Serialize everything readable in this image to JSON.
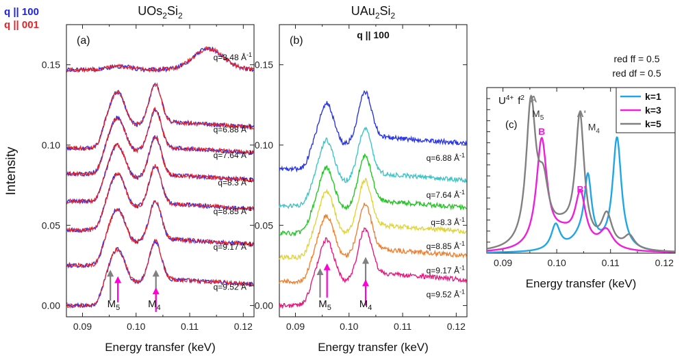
{
  "figure": {
    "y_axis_label": "Intensity",
    "x_axis_label": "Energy transfer (keV)"
  },
  "chart_data": [
    {
      "type": "line",
      "panel": "(a)",
      "title_main": "UOs",
      "title_sub": "2",
      "title_tail": "Si",
      "title_sub2": "2",
      "xlabel": "Energy transfer (keV)",
      "ylabel": "Intensity",
      "xlim": [
        0.087,
        0.122
      ],
      "ylim": [
        -0.007,
        0.175
      ],
      "x_ticks": [
        0.09,
        0.1,
        0.11,
        0.12
      ],
      "x_tick_labels": [
        "0.09",
        "0.10",
        "0.11",
        "0.12"
      ],
      "y_ticks": [
        0.0,
        0.05,
        0.1,
        0.15
      ],
      "y_tick_labels": [
        "0.00",
        "0.05",
        "0.10",
        "0.15"
      ],
      "legend": [
        {
          "label": "q || 100",
          "color": "#1f22e6"
        },
        {
          "label": "q || 001",
          "color": "#e6232a"
        }
      ],
      "series": [
        {
          "label": "q=9.52 Å",
          "sup": "-1",
          "offset": 0.0,
          "shape": "m",
          "colors": [
            "#1f22e6",
            "#e6232a"
          ]
        },
        {
          "label": "q=9.17 Å",
          "sup": "-1",
          "offset": 0.025,
          "shape": "m",
          "colors": [
            "#1f22e6",
            "#e6232a"
          ]
        },
        {
          "label": "q=8.85 Å",
          "sup": "-1",
          "offset": 0.047,
          "shape": "m",
          "colors": [
            "#1f22e6",
            "#e6232a"
          ]
        },
        {
          "label": "q=8.3 Å",
          "sup": "-1",
          "offset": 0.065,
          "shape": "m",
          "colors": [
            "#1f22e6",
            "#e6232a"
          ]
        },
        {
          "label": "q=7.64 Å",
          "sup": "-1",
          "offset": 0.082,
          "shape": "m",
          "colors": [
            "#1f22e6",
            "#e6232a"
          ]
        },
        {
          "label": "q=6.88 Å",
          "sup": "-1",
          "offset": 0.098,
          "shape": "m",
          "colors": [
            "#1f22e6",
            "#e6232a"
          ]
        },
        {
          "label": "q=3.48 Å",
          "sup": "-1",
          "offset": 0.147,
          "shape": "bump",
          "colors": [
            "#1f22e6",
            "#e6232a"
          ]
        }
      ],
      "edge_labels": [
        {
          "main": "M",
          "sub": "5",
          "x": 0.0958
        },
        {
          "main": "M",
          "sub": "4",
          "x": 0.1034
        }
      ],
      "arrows": [
        {
          "x": 0.0952,
          "color": "#808080",
          "y0": 0.003,
          "y1": 0.021
        },
        {
          "x": 0.0966,
          "color": "#ff00d6",
          "y0": 0.002,
          "y1": 0.017
        },
        {
          "x": 0.1037,
          "color": "#808080",
          "y0": 0.003,
          "y1": 0.021
        },
        {
          "x": 0.1037,
          "color": "#ff00d6",
          "y0": -0.004,
          "y1": 0.01
        }
      ]
    },
    {
      "type": "line",
      "panel": "(b)",
      "title_main": "UAu",
      "title_sub": "2",
      "title_tail": "Si",
      "title_sub2": "2",
      "subtitle": "q || 100",
      "xlabel": "Energy transfer (keV)",
      "xlim": [
        0.087,
        0.122
      ],
      "ylim": [
        -0.007,
        0.175
      ],
      "x_ticks": [
        0.09,
        0.1,
        0.11,
        0.12
      ],
      "x_tick_labels": [
        "0.09",
        "0.10",
        "0.11",
        "0.12"
      ],
      "y_ticks": [
        0.0,
        0.05,
        0.1,
        0.15
      ],
      "y_tick_labels": [
        "0.00",
        "0.05",
        "0.10",
        "0.15"
      ],
      "series": [
        {
          "label": "q=9.52 Å",
          "sup": "-1",
          "offset": 0.0,
          "color": "#e8197f",
          "label_on": true
        },
        {
          "label": "q=9.17 Å",
          "sup": "-1",
          "offset": 0.015,
          "color": "#f08030",
          "label_on": true
        },
        {
          "label": "q=8.85 Å",
          "sup": "-1",
          "offset": 0.03,
          "color": "#e0d43c",
          "label_on": true
        },
        {
          "label": "q=8.3 Å",
          "sup": "-1",
          "offset": 0.045,
          "color": "#28c428",
          "label_on": true
        },
        {
          "label": "q=7.64 Å",
          "sup": "-1",
          "offset": 0.062,
          "color": "#40c4c8",
          "label_on": true
        },
        {
          "label": "q=6.88 Å",
          "sup": "-1",
          "offset": 0.085,
          "color": "#2a36e6",
          "label_on": true
        }
      ],
      "edge_labels": [
        {
          "main": "M",
          "sub": "5",
          "x": 0.0955
        },
        {
          "main": "M",
          "sub": "4",
          "x": 0.1031
        }
      ],
      "arrows": [
        {
          "x": 0.0946,
          "color": "#808080",
          "y0": 0.005,
          "y1": 0.022
        },
        {
          "x": 0.0959,
          "color": "#ff00d6",
          "y0": 0.005,
          "y1": 0.025
        },
        {
          "x": 0.1031,
          "color": "#808080",
          "y0": 0.014,
          "y1": 0.029
        },
        {
          "x": 0.1031,
          "color": "#ff00d6",
          "y0": 0.0,
          "y1": 0.015
        }
      ]
    },
    {
      "type": "line",
      "panel": "(c)",
      "title_main": "U",
      "title_sup": "4+",
      "title_tail": "f",
      "title_sup2": "2",
      "annotation_1": "red ff = 0.5",
      "annotation_2": "red df = 0.5",
      "xlabel": "Energy transfer (keV)",
      "xlim": [
        0.087,
        0.122
      ],
      "ylim": [
        0,
        1.12
      ],
      "x_ticks": [
        0.09,
        0.1,
        0.11,
        0.12
      ],
      "x_tick_labels": [
        "0.09",
        "0.10",
        "0.11",
        "0.12"
      ],
      "legend": [
        {
          "label": "k=1",
          "color": "#1ea6e6"
        },
        {
          "label": "k=3",
          "color": "#ee1fd8"
        },
        {
          "label": "k=5",
          "color": "#808080"
        }
      ],
      "series": [
        {
          "name": "k=1",
          "color": "#1ea6e6",
          "peaks": [
            [
              0.0998,
              0.17,
              0.001
            ],
            [
              0.1058,
              0.42,
              0.0008
            ],
            [
              0.1112,
              0.76,
              0.001
            ],
            [
              0.105,
              0.1,
              0.0025
            ]
          ]
        },
        {
          "name": "k=3",
          "color": "#ee1fd8",
          "peaks": [
            [
              0.0972,
              0.73,
              0.0012
            ],
            [
              0.1044,
              0.35,
              0.0012
            ],
            [
              0.1092,
              0.13,
              0.0015
            ],
            [
              0.101,
              0.1,
              0.003
            ]
          ]
        },
        {
          "name": "k=5",
          "color": "#808080",
          "peaks": [
            [
              0.0952,
              0.95,
              0.0011
            ],
            [
              0.0975,
              0.35,
              0.0012
            ],
            [
              0.1043,
              0.86,
              0.001
            ],
            [
              0.1093,
              0.22,
              0.0012
            ],
            [
              0.1135,
              0.09,
              0.0012
            ],
            [
              0.101,
              0.12,
              0.003
            ]
          ]
        }
      ],
      "peak_labels": [
        {
          "main": "A",
          "color": "#808080",
          "x": 0.0957,
          "y": 1.02
        },
        {
          "main": "M",
          "sub": "5",
          "color": "#333333",
          "x": 0.0965,
          "y": 0.92
        },
        {
          "main": "B",
          "color": "#ee1fd8",
          "x": 0.0972,
          "y": 0.8
        },
        {
          "main": "A'",
          "color": "#808080",
          "x": 0.1046,
          "y": 0.92
        },
        {
          "main": "M",
          "sub": "4",
          "color": "#333333",
          "x": 0.1069,
          "y": 0.83
        },
        {
          "main": "B'",
          "color": "#ee1fd8",
          "x": 0.1046,
          "y": 0.41
        }
      ]
    }
  ]
}
